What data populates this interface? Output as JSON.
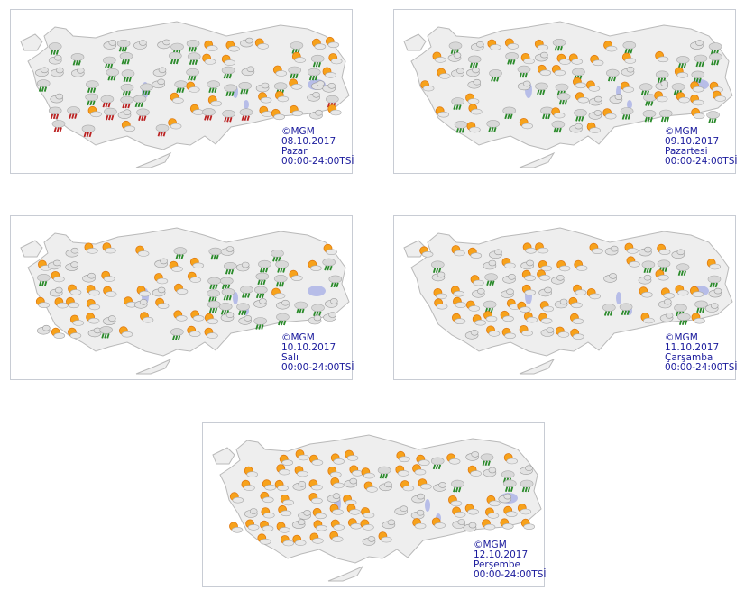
{
  "maps": [
    {
      "copyright": "©MGM",
      "date": "08.10.2017",
      "day": "Pazar",
      "time": "00:00-24:00TSİ"
    },
    {
      "copyright": "©MGM",
      "date": "09.10.2017",
      "day": "Pazartesi",
      "time": "00:00-24:00TSİ"
    },
    {
      "copyright": "©MGM",
      "date": "10.10.2017",
      "day": "Salı",
      "time": "00:00-24:00TSİ"
    },
    {
      "copyright": "©MGM",
      "date": "11.10.2017",
      "day": "Çarşamba",
      "time": "00:00-24:00TSİ"
    },
    {
      "copyright": "©MGM",
      "date": "12.10.2017",
      "day": "Perşembe",
      "time": "00:00-24:00TSİ"
    }
  ]
}
